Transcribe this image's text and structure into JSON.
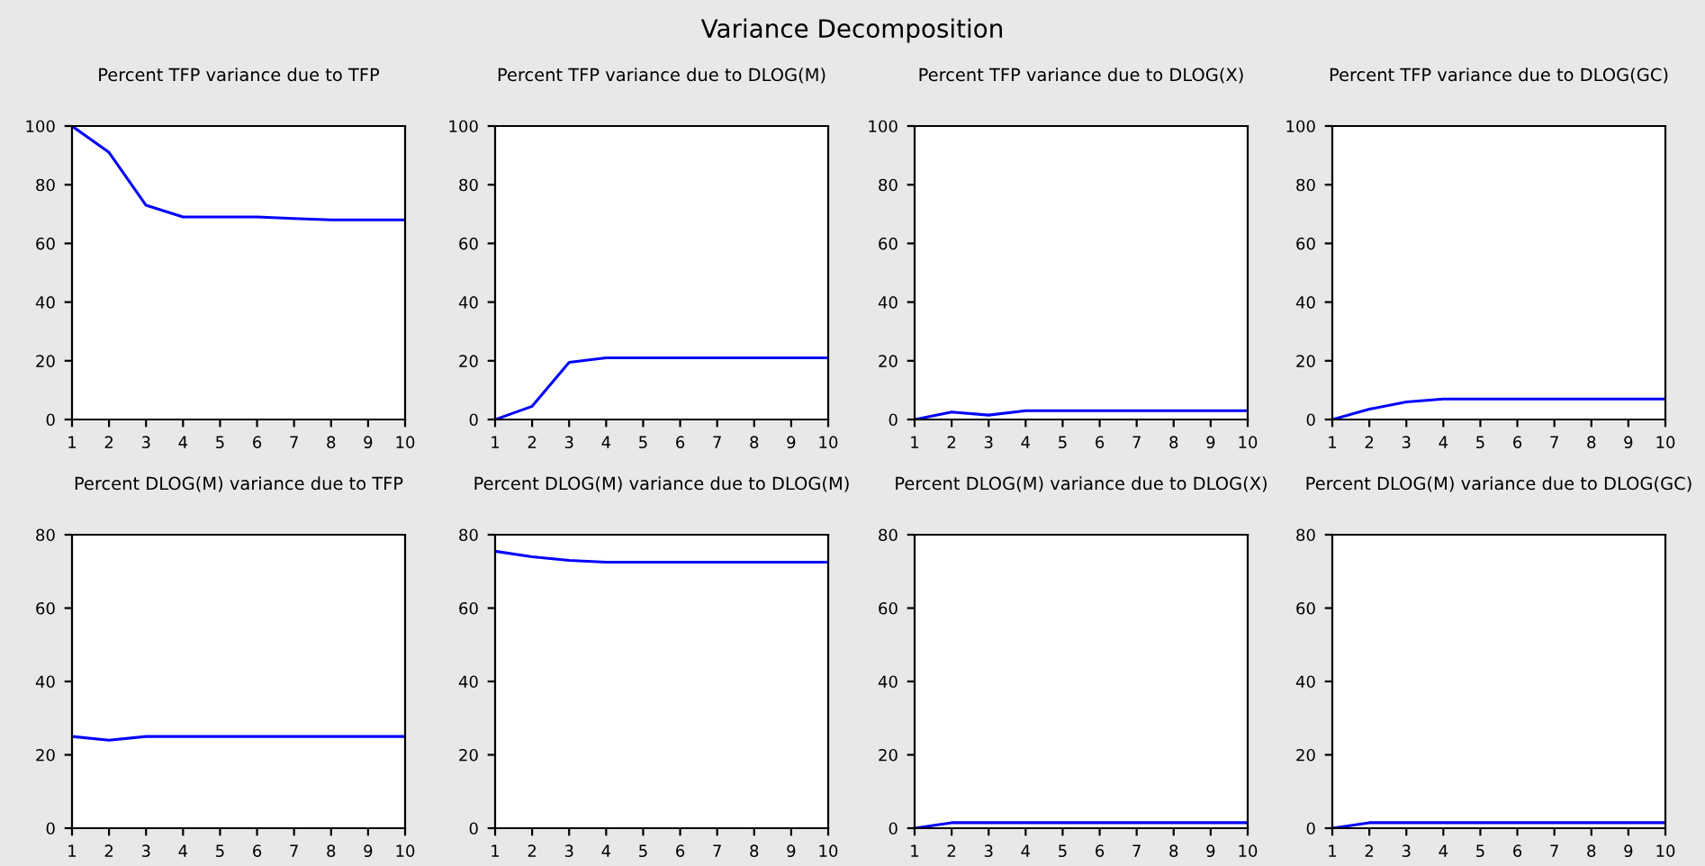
{
  "chart_data": [
    {
      "type": "line",
      "title": "Percent TFP variance due to TFP",
      "annotations": [
        "Variance Decomposition"
      ],
      "x": [
        1,
        2,
        3,
        4,
        5,
        6,
        7,
        8,
        9,
        10
      ],
      "series": [
        {
          "color": "#0000ff",
          "values": [
            100,
            91,
            73,
            69,
            69,
            69,
            68.5,
            68,
            68,
            68
          ]
        }
      ],
      "xlim": [
        1,
        10
      ],
      "xticks": [
        1,
        2,
        3,
        4,
        5,
        6,
        7,
        8,
        9,
        10
      ],
      "ylim": [
        0,
        100
      ],
      "yticks": [
        0,
        20,
        40,
        60,
        80,
        100
      ],
      "grid": false,
      "legend": false
    },
    {
      "type": "line",
      "title": "Percent TFP variance due to DLOG(M)",
      "x": [
        1,
        2,
        3,
        4,
        5,
        6,
        7,
        8,
        9,
        10
      ],
      "series": [
        {
          "color": "#0000ff",
          "values": [
            0,
            4.5,
            19.5,
            21,
            21,
            21,
            21,
            21,
            21,
            21
          ]
        }
      ],
      "xlim": [
        1,
        10
      ],
      "xticks": [
        1,
        2,
        3,
        4,
        5,
        6,
        7,
        8,
        9,
        10
      ],
      "ylim": [
        0,
        100
      ],
      "yticks": [
        0,
        20,
        40,
        60,
        80,
        100
      ],
      "grid": false,
      "legend": false
    },
    {
      "type": "line",
      "title": "Percent TFP variance due to DLOG(X)",
      "x": [
        1,
        2,
        3,
        4,
        5,
        6,
        7,
        8,
        9,
        10
      ],
      "series": [
        {
          "color": "#0000ff",
          "values": [
            0,
            2.5,
            1.5,
            3,
            3,
            3,
            3,
            3,
            3,
            3
          ]
        }
      ],
      "xlim": [
        1,
        10
      ],
      "xticks": [
        1,
        2,
        3,
        4,
        5,
        6,
        7,
        8,
        9,
        10
      ],
      "ylim": [
        0,
        100
      ],
      "yticks": [
        0,
        20,
        40,
        60,
        80,
        100
      ],
      "grid": false,
      "legend": false
    },
    {
      "type": "line",
      "title": "Percent TFP variance due to DLOG(GC)",
      "x": [
        1,
        2,
        3,
        4,
        5,
        6,
        7,
        8,
        9,
        10
      ],
      "series": [
        {
          "color": "#0000ff",
          "values": [
            0,
            3.5,
            6,
            7,
            7,
            7,
            7,
            7,
            7,
            7
          ]
        }
      ],
      "xlim": [
        1,
        10
      ],
      "xticks": [
        1,
        2,
        3,
        4,
        5,
        6,
        7,
        8,
        9,
        10
      ],
      "ylim": [
        0,
        100
      ],
      "yticks": [
        0,
        20,
        40,
        60,
        80,
        100
      ],
      "grid": false,
      "legend": false
    },
    {
      "type": "line",
      "title": "Percent DLOG(M) variance due to TFP",
      "x": [
        1,
        2,
        3,
        4,
        5,
        6,
        7,
        8,
        9,
        10
      ],
      "series": [
        {
          "color": "#0000ff",
          "values": [
            25,
            24,
            25,
            25,
            25,
            25,
            25,
            25,
            25,
            25
          ]
        }
      ],
      "xlim": [
        1,
        10
      ],
      "xticks": [
        1,
        2,
        3,
        4,
        5,
        6,
        7,
        8,
        9,
        10
      ],
      "ylim": [
        0,
        80
      ],
      "yticks": [
        0,
        20,
        40,
        60,
        80
      ],
      "grid": false,
      "legend": false
    },
    {
      "type": "line",
      "title": "Percent DLOG(M) variance due to DLOG(M)",
      "x": [
        1,
        2,
        3,
        4,
        5,
        6,
        7,
        8,
        9,
        10
      ],
      "series": [
        {
          "color": "#0000ff",
          "values": [
            75.5,
            74,
            73,
            72.5,
            72.5,
            72.5,
            72.5,
            72.5,
            72.5,
            72.5
          ]
        }
      ],
      "xlim": [
        1,
        10
      ],
      "xticks": [
        1,
        2,
        3,
        4,
        5,
        6,
        7,
        8,
        9,
        10
      ],
      "ylim": [
        0,
        80
      ],
      "yticks": [
        0,
        20,
        40,
        60,
        80
      ],
      "grid": false,
      "legend": false
    },
    {
      "type": "line",
      "title": "Percent DLOG(M) variance due to DLOG(X)",
      "x": [
        1,
        2,
        3,
        4,
        5,
        6,
        7,
        8,
        9,
        10
      ],
      "series": [
        {
          "color": "#0000ff",
          "values": [
            0,
            1.5,
            1.5,
            1.5,
            1.5,
            1.5,
            1.5,
            1.5,
            1.5,
            1.5
          ]
        }
      ],
      "xlim": [
        1,
        10
      ],
      "xticks": [
        1,
        2,
        3,
        4,
        5,
        6,
        7,
        8,
        9,
        10
      ],
      "ylim": [
        0,
        80
      ],
      "yticks": [
        0,
        20,
        40,
        60,
        80
      ],
      "grid": false,
      "legend": false
    },
    {
      "type": "line",
      "title": "Percent DLOG(M) variance due to DLOG(GC)",
      "x": [
        1,
        2,
        3,
        4,
        5,
        6,
        7,
        8,
        9,
        10
      ],
      "series": [
        {
          "color": "#0000ff",
          "values": [
            0,
            1.5,
            1.5,
            1.5,
            1.5,
            1.5,
            1.5,
            1.5,
            1.5,
            1.5
          ]
        }
      ],
      "xlim": [
        1,
        10
      ],
      "xticks": [
        1,
        2,
        3,
        4,
        5,
        6,
        7,
        8,
        9,
        10
      ],
      "ylim": [
        0,
        80
      ],
      "yticks": [
        0,
        20,
        40,
        60,
        80
      ],
      "grid": false,
      "legend": false
    }
  ]
}
